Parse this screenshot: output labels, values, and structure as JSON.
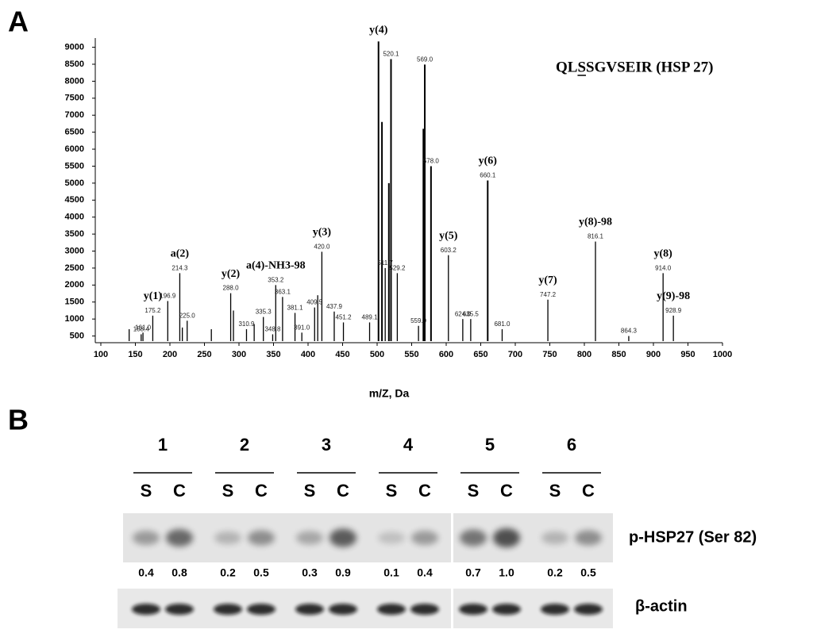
{
  "panel_labels": [
    "A",
    "B"
  ],
  "chart_data": {
    "type": "spectrum",
    "title": "QLSSGVSEIR (HSP 27)",
    "underline_char": 2,
    "xlabel": "m/Z, Da",
    "x": [
      141,
      158.4,
      161.0,
      175.2,
      196.9,
      214.3,
      218,
      225.0,
      260,
      288.0,
      292,
      310.9,
      322,
      335.3,
      348.8,
      353.2,
      363.1,
      381.1,
      391.0,
      409.5,
      414,
      420.0,
      437.9,
      451.2,
      489.1,
      502,
      507,
      511.7,
      517,
      520.1,
      529.2,
      559.9,
      567,
      569.0,
      578.0,
      603.2,
      624.0,
      635.5,
      660.1,
      681.0,
      747.2,
      816.1,
      864.3,
      914.0,
      928.9
    ],
    "values": [
      700,
      550,
      600,
      1100,
      1530,
      2350,
      750,
      950,
      700,
      1760,
      1250,
      700,
      850,
      1060,
      550,
      2000,
      1650,
      1180,
      600,
      1340,
      1700,
      2980,
      1220,
      900,
      900,
      9170,
      6800,
      2500,
      5000,
      8650,
      2350,
      800,
      6600,
      8490,
      5500,
      2880,
      1000,
      1000,
      5080,
      700,
      1570,
      3280,
      500,
      2350,
      1100
    ],
    "peak_labels": [
      null,
      "158.4",
      "161.0",
      "175.2",
      "196.9",
      "214.3",
      null,
      "225.0",
      null,
      "288.0",
      null,
      "310.9",
      null,
      "335.3",
      "348.8",
      "353.2",
      "363.1",
      "381.1",
      "391.0",
      "409.5",
      null,
      "420.0",
      "437.9",
      "451.2",
      "489.1",
      null,
      null,
      "511.7",
      null,
      "520.1",
      "529.2",
      "559.9",
      null,
      "569.0",
      "578.0",
      "603.2",
      "624.0",
      "635.5",
      "660.1",
      "681.0",
      "747.2",
      "816.1",
      "864.3",
      "914.0",
      "928.9"
    ],
    "ion_labels": [
      null,
      null,
      null,
      "y(1)",
      null,
      "a(2)",
      null,
      null,
      null,
      "y(2)",
      null,
      null,
      null,
      null,
      null,
      "a(4)-NH3-98",
      null,
      null,
      null,
      null,
      null,
      "y(3)",
      null,
      null,
      null,
      "y(4)",
      null,
      null,
      null,
      null,
      null,
      null,
      null,
      null,
      null,
      "y(5)",
      null,
      null,
      "y(6)",
      null,
      "y(7)",
      "y(8)-98",
      null,
      "y(8)",
      "y(9)-98"
    ],
    "color": "#000000",
    "xlim": [
      100,
      1000
    ],
    "xticks": [
      100,
      150,
      200,
      250,
      300,
      350,
      400,
      450,
      500,
      550,
      600,
      650,
      700,
      750,
      800,
      850,
      900,
      950,
      1000
    ],
    "ylim": [
      350,
      9200
    ],
    "yticks": [
      500,
      1000,
      1500,
      2000,
      2500,
      3000,
      3500,
      4000,
      4500,
      5000,
      5500,
      6000,
      6500,
      7000,
      7500,
      8000,
      8500,
      9000
    ]
  },
  "blot": {
    "lanes": [
      "1",
      "2",
      "3",
      "4",
      "5",
      "6"
    ],
    "sample_labels": [
      "S",
      "C"
    ],
    "quantification": [
      [
        "0.4",
        "0.8"
      ],
      [
        "0.2",
        "0.5"
      ],
      [
        "0.3",
        "0.9"
      ],
      [
        "0.1",
        "0.4"
      ],
      [
        "0.7",
        "1.0"
      ],
      [
        "0.2",
        "0.5"
      ]
    ],
    "row_labels": [
      "p-HSP27 (Ser 82)",
      "β-actin"
    ]
  }
}
